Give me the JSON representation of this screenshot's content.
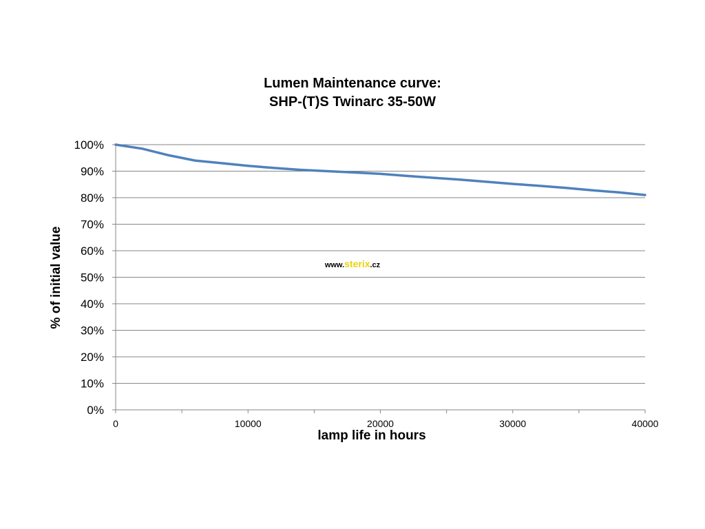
{
  "chart_data": {
    "type": "line",
    "title": [
      "Lumen Maintenance curve:",
      "SHP-(T)S Twinarc 35-50W"
    ],
    "xlabel": "lamp life in hours",
    "ylabel": "% of initial value",
    "xlim": [
      0,
      40000
    ],
    "ylim": [
      0,
      100
    ],
    "x_ticks": [
      0,
      10000,
      20000,
      30000,
      40000
    ],
    "y_ticks": [
      0,
      10,
      20,
      30,
      40,
      50,
      60,
      70,
      80,
      90,
      100
    ],
    "x_tick_labels": [
      "0",
      "10000",
      "20000",
      "30000",
      "40000"
    ],
    "y_tick_labels": [
      "0%",
      "10%",
      "20%",
      "30%",
      "40%",
      "50%",
      "60%",
      "70%",
      "80%",
      "90%",
      "100%"
    ],
    "grid": "horizontal",
    "legend": "none",
    "series_color": "#4F81BD",
    "series": [
      {
        "x": [
          0,
          2000,
          4000,
          6000,
          8000,
          10000,
          12000,
          14000,
          16000,
          18000,
          20000,
          22000,
          24000,
          26000,
          28000,
          30000,
          32000,
          34000,
          36000,
          38000,
          40000
        ],
        "y": [
          100,
          98.5,
          96,
          94,
          93,
          92,
          91.2,
          90.5,
          90,
          89.5,
          89,
          88.2,
          87.5,
          86.8,
          86,
          85.2,
          84.5,
          83.7,
          82.8,
          82,
          81
        ]
      }
    ]
  },
  "watermark": {
    "prefix": "www.",
    "brand": "sterix",
    "suffix": ".cz",
    "brand_color": "#E8D40A"
  }
}
